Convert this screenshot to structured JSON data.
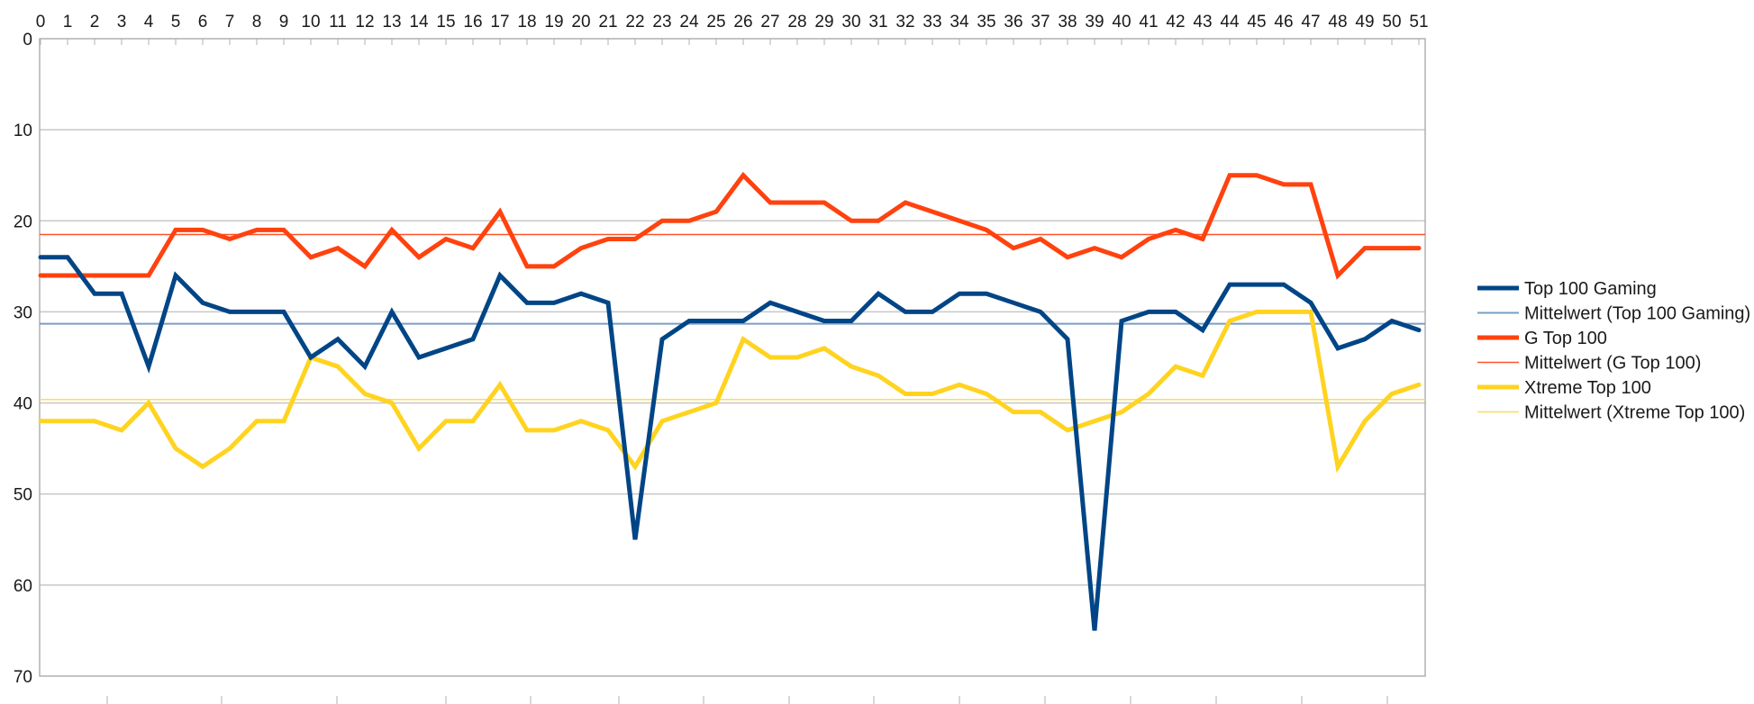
{
  "chart_data": {
    "type": "line",
    "title": "",
    "x": [
      0,
      1,
      2,
      3,
      4,
      5,
      6,
      7,
      8,
      9,
      10,
      11,
      12,
      13,
      14,
      15,
      16,
      17,
      18,
      19,
      20,
      21,
      22,
      23,
      24,
      25,
      26,
      27,
      28,
      29,
      30,
      31,
      32,
      33,
      34,
      35,
      36,
      37,
      38,
      39,
      40,
      41,
      42,
      43,
      44,
      45,
      46,
      47,
      48,
      49,
      50,
      51
    ],
    "x_axis": {
      "position": "top",
      "tick_labels": [
        "0",
        "1",
        "2",
        "3",
        "4",
        "5",
        "6",
        "7",
        "8",
        "9",
        "10",
        "11",
        "12",
        "13",
        "14",
        "15",
        "16",
        "17",
        "18",
        "19",
        "20",
        "21",
        "22",
        "23",
        "24",
        "25",
        "26",
        "27",
        "28",
        "29",
        "30",
        "31",
        "32",
        "33",
        "34",
        "35",
        "36",
        "37",
        "38",
        "39",
        "40",
        "41",
        "42",
        "43",
        "44",
        "45",
        "46",
        "47",
        "48",
        "49",
        "50",
        "51"
      ]
    },
    "y_axis": {
      "tick_labels": [
        "0",
        "10",
        "20",
        "30",
        "40",
        "50",
        "60",
        "70"
      ],
      "ticks": [
        0,
        10,
        20,
        30,
        40,
        50,
        60,
        70
      ],
      "min": 0,
      "max": 70,
      "inverted": true,
      "grid": true
    },
    "series": [
      {
        "name": "Top 100 Gaming",
        "color": "#004586",
        "stroke_width": 5,
        "values": [
          24,
          24,
          28,
          28,
          36,
          26,
          29,
          30,
          30,
          30,
          35,
          33,
          36,
          30,
          35,
          34,
          33,
          26,
          29,
          29,
          28,
          29,
          55,
          33,
          31,
          31,
          31,
          29,
          30,
          31,
          31,
          28,
          30,
          30,
          28,
          28,
          29,
          30,
          33,
          65,
          31,
          30,
          30,
          32,
          27,
          27,
          27,
          29,
          34,
          33,
          31,
          32
        ]
      },
      {
        "name": "G Top 100",
        "color": "#FF420E",
        "stroke_width": 5,
        "values": [
          26,
          26,
          26,
          26,
          26,
          21,
          21,
          22,
          21,
          21,
          24,
          23,
          25,
          21,
          24,
          22,
          23,
          19,
          25,
          25,
          23,
          22,
          22,
          20,
          20,
          19,
          15,
          18,
          18,
          18,
          20,
          20,
          18,
          19,
          20,
          21,
          23,
          22,
          24,
          23,
          24,
          22,
          21,
          22,
          15,
          15,
          16,
          16,
          26,
          23,
          23,
          23
        ]
      },
      {
        "name": "Xtreme Top 100",
        "color": "#FFD320",
        "stroke_width": 5,
        "values": [
          42,
          42,
          42,
          43,
          40,
          45,
          47,
          45,
          42,
          42,
          35,
          36,
          39,
          40,
          45,
          42,
          42,
          38,
          43,
          43,
          42,
          43,
          47,
          42,
          41,
          40,
          33,
          35,
          35,
          34,
          36,
          37,
          39,
          39,
          38,
          39,
          41,
          41,
          43,
          42,
          41,
          39,
          36,
          37,
          31,
          30,
          30,
          30,
          47,
          42,
          39,
          38
        ]
      }
    ],
    "mean_lines": [
      {
        "name": "Mittelwert (Top 100 Gaming)",
        "color": "#7A9EC6",
        "stroke_width": 2,
        "value": 31.31
      },
      {
        "name": "Mittelwert (G Top 100)",
        "color": "#FF5227",
        "stroke_width": 1.5,
        "value": 21.5
      },
      {
        "name": "Mittelwert (Xtreme Top 100)",
        "color": "#FFDC55",
        "stroke_width": 1.5,
        "value": 39.62
      }
    ],
    "legend": {
      "position": "right",
      "entries": [
        "Top 100 Gaming",
        "Mittelwert (Top 100 Gaming)",
        "G Top 100",
        "Mittelwert (G Top 100)",
        "Xtreme Top 100",
        "Mittelwert (Xtreme Top 100)"
      ]
    },
    "colors": {
      "grid": "#C8C8C8",
      "axis": "#B0B0B0",
      "label_text": "#1A1A1A",
      "background": "#FFFFFF"
    }
  }
}
